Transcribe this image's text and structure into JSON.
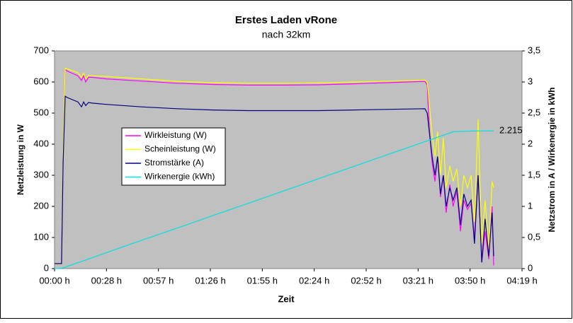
{
  "chart_data": {
    "type": "line",
    "title": "Erstes Laden vRone",
    "subtitle": "nach 32km",
    "x_label": "Zeit",
    "y_label": "Netzleistung in W",
    "y2_label": "Netzstrom in A / Wirkenergie in kWh",
    "x": [
      0,
      0.0027,
      0.0033,
      0.0041,
      0.0049,
      0.009,
      0.0104,
      0.0112,
      0.012,
      0.0131,
      0.0145,
      0.0199,
      0.0335,
      0.0472,
      0.0608,
      0.0745,
      0.0881,
      0.1017,
      0.1154,
      0.129,
      0.1426,
      0.1435,
      0.1443,
      0.1454,
      0.1465,
      0.1475,
      0.1486,
      0.1497,
      0.1508,
      0.1522,
      0.1535,
      0.1549,
      0.1563,
      0.1576,
      0.159,
      0.1604,
      0.1617,
      0.1631,
      0.1645,
      0.1658,
      0.1672,
      0.1685,
      0.1691
    ],
    "xlim": [
      0,
      0.18
    ],
    "xticks": [
      {
        "value": 0,
        "label": "00:00 h"
      },
      {
        "value": 0.02,
        "label": "00:28 h"
      },
      {
        "value": 0.04,
        "label": "00:57 h"
      },
      {
        "value": 0.06,
        "label": "01:26 h"
      },
      {
        "value": 0.08,
        "label": "01:55 h"
      },
      {
        "value": 0.1,
        "label": "02:24 h"
      },
      {
        "value": 0.12,
        "label": "02:52 h"
      },
      {
        "value": 0.14,
        "label": "03:21 h"
      },
      {
        "value": 0.16,
        "label": "03:50 h"
      },
      {
        "value": 0.18,
        "label": "04:19 h"
      }
    ],
    "ylim": [
      0,
      700
    ],
    "yticks": [
      0,
      100,
      200,
      300,
      400,
      500,
      600,
      700
    ],
    "y2lim": [
      0,
      3.5
    ],
    "y2ticks": [
      0,
      {
        "value": 0.5,
        "label": "0,5"
      },
      1,
      {
        "value": 1.5,
        "label": "1,5"
      },
      2,
      {
        "value": 2.5,
        "label": "2,5"
      },
      3,
      {
        "value": 3.5,
        "label": "3,5"
      }
    ],
    "plot_background": "#c0c0c0",
    "series": [
      {
        "name": "Wirkleistung (W)",
        "color": "#ff00ff",
        "values": [
          15,
          15,
          370,
          640,
          635,
          620,
          605,
          620,
          600,
          615,
          615,
          610,
          603,
          596,
          592,
          590,
          590,
          591,
          594,
          598,
          602,
          590,
          450,
          340,
          280,
          360,
          230,
          300,
          180,
          270,
          200,
          250,
          120,
          220,
          190,
          210,
          100,
          300,
          20,
          120,
          30,
          200,
          10
        ]
      },
      {
        "name": "Scheinleistung (W)",
        "color": "#ffff00",
        "values": [
          15,
          15,
          380,
          645,
          642,
          630,
          615,
          628,
          610,
          622,
          620,
          618,
          610,
          602,
          598,
          596,
          596,
          597,
          600,
          603,
          606,
          600,
          530,
          430,
          360,
          440,
          300,
          420,
          260,
          330,
          280,
          320,
          200,
          300,
          260,
          300,
          150,
          480,
          80,
          220,
          60,
          280,
          260
        ]
      },
      {
        "name": "Stromstärke (A)",
        "color": "#000080",
        "axis": "y2",
        "values": [
          0.08,
          0.08,
          1.7,
          2.77,
          2.75,
          2.68,
          2.6,
          2.68,
          2.62,
          2.67,
          2.66,
          2.64,
          2.6,
          2.57,
          2.55,
          2.54,
          2.54,
          2.54,
          2.55,
          2.56,
          2.57,
          2.5,
          2.2,
          1.8,
          1.5,
          1.8,
          1.2,
          1.5,
          1.0,
          1.3,
          1.1,
          1.3,
          0.7,
          1.2,
          1.0,
          1.1,
          0.4,
          1.5,
          0.1,
          0.8,
          0.2,
          0.9,
          0.2
        ]
      },
      {
        "name": "Wirkenergie (kWh)",
        "color": "#00e0e0",
        "axis": "y2",
        "values": [
          0,
          0.004,
          0.012,
          0.024,
          0.036,
          0.095,
          0.115,
          0.127,
          0.139,
          0.155,
          0.175,
          0.254,
          0.453,
          0.651,
          0.85,
          1.048,
          1.247,
          1.446,
          1.644,
          1.843,
          2.041,
          2.053,
          2.065,
          2.081,
          2.097,
          2.113,
          2.128,
          2.144,
          2.16,
          2.18,
          2.2,
          2.203,
          2.205,
          2.207,
          2.209,
          2.21,
          2.211,
          2.212,
          2.213,
          2.214,
          2.214,
          2.215,
          2.215
        ],
        "value_labels": [
          null,
          null,
          null,
          null,
          null,
          null,
          null,
          null,
          null,
          null,
          null,
          null,
          null,
          null,
          null,
          null,
          null,
          null,
          null,
          null,
          null,
          null,
          null,
          null,
          null,
          null,
          null,
          null,
          null,
          null,
          null,
          null,
          null,
          null,
          null,
          null,
          null,
          null,
          null,
          null,
          null,
          null,
          "2.215"
        ]
      }
    ]
  }
}
